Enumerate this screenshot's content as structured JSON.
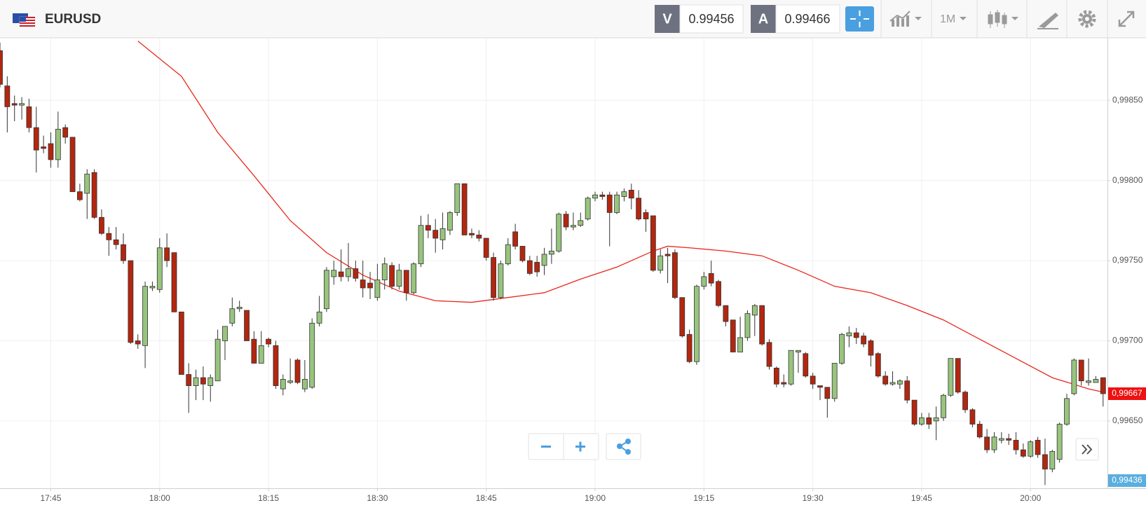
{
  "chart_data": {
    "type": "candlestick",
    "title": "EURUSD",
    "bid_tag": "V",
    "bid": 0.99456,
    "ask_tag": "A",
    "ask": 0.99466,
    "timeframe": "1M",
    "up_color": "#98c47e",
    "down_color": "#b3260f",
    "wick_color": "#333333",
    "ohlc": [
      [
        0.99881,
        0.99886,
        0.99858,
        0.9986
      ],
      [
        0.99859,
        0.99865,
        0.9983,
        0.99846
      ],
      [
        0.99848,
        0.99853,
        0.99837,
        0.99847
      ],
      [
        0.99847,
        0.99852,
        0.99838,
        0.99848
      ],
      [
        0.99846,
        0.99851,
        0.9983,
        0.99833
      ],
      [
        0.99833,
        0.99846,
        0.99805,
        0.99819
      ],
      [
        0.99821,
        0.99828,
        0.99817,
        0.9982
      ],
      [
        0.99823,
        0.9983,
        0.99808,
        0.99813
      ],
      [
        0.99813,
        0.99843,
        0.99808,
        0.99832
      ],
      [
        0.99833,
        0.99835,
        0.99823,
        0.99827
      ],
      [
        0.99827,
        0.99827,
        0.99793,
        0.99793
      ],
      [
        0.99793,
        0.99798,
        0.99787,
        0.99788
      ],
      [
        0.99792,
        0.99807,
        0.99776,
        0.99804
      ],
      [
        0.99805,
        0.99807,
        0.99776,
        0.99777
      ],
      [
        0.99777,
        0.99782,
        0.99766,
        0.99767
      ],
      [
        0.99767,
        0.99771,
        0.99753,
        0.99763
      ],
      [
        0.99763,
        0.99771,
        0.99757,
        0.9976
      ],
      [
        0.9976,
        0.99767,
        0.99748,
        0.9975
      ],
      [
        0.9975,
        0.9975,
        0.99698,
        0.99699
      ],
      [
        0.997,
        0.99704,
        0.99695,
        0.99698
      ],
      [
        0.99697,
        0.99737,
        0.99683,
        0.99734
      ],
      [
        0.99733,
        0.99737,
        0.99731,
        0.99734
      ],
      [
        0.99732,
        0.99764,
        0.9973,
        0.99758
      ],
      [
        0.99758,
        0.99767,
        0.99746,
        0.9975
      ],
      [
        0.99755,
        0.99755,
        0.99718,
        0.99718
      ],
      [
        0.99718,
        0.99718,
        0.99679,
        0.99679
      ],
      [
        0.99679,
        0.99686,
        0.99655,
        0.99672
      ],
      [
        0.99672,
        0.99682,
        0.99663,
        0.99677
      ],
      [
        0.99677,
        0.99684,
        0.99663,
        0.99673
      ],
      [
        0.99672,
        0.99679,
        0.99662,
        0.99677
      ],
      [
        0.99675,
        0.99707,
        0.99675,
        0.99701
      ],
      [
        0.997,
        0.99709,
        0.99688,
        0.99709
      ],
      [
        0.99711,
        0.99727,
        0.99709,
        0.9972
      ],
      [
        0.9972,
        0.99725,
        0.99718,
        0.99721
      ],
      [
        0.99719,
        0.99719,
        0.997,
        0.997
      ],
      [
        0.99701,
        0.99706,
        0.99686,
        0.99686
      ],
      [
        0.99686,
        0.99706,
        0.99686,
        0.99697
      ],
      [
        0.99701,
        0.99702,
        0.99696,
        0.99698
      ],
      [
        0.99697,
        0.997,
        0.9967,
        0.99672
      ],
      [
        0.9967,
        0.99679,
        0.99666,
        0.99676
      ],
      [
        0.99674,
        0.99689,
        0.99673,
        0.99675
      ],
      [
        0.99688,
        0.99689,
        0.99673,
        0.99674
      ],
      [
        0.9967,
        0.99688,
        0.99668,
        0.99676
      ],
      [
        0.99671,
        0.99714,
        0.9967,
        0.99711
      ],
      [
        0.99711,
        0.99728,
        0.99709,
        0.99718
      ],
      [
        0.9972,
        0.99746,
        0.99718,
        0.99744
      ],
      [
        0.9974,
        0.9975,
        0.99735,
        0.99744
      ],
      [
        0.99743,
        0.99757,
        0.99737,
        0.9974
      ],
      [
        0.9974,
        0.99761,
        0.99737,
        0.99745
      ],
      [
        0.99745,
        0.9975,
        0.99737,
        0.99739
      ],
      [
        0.99738,
        0.9975,
        0.99727,
        0.99733
      ],
      [
        0.99736,
        0.99743,
        0.99726,
        0.99733
      ],
      [
        0.99727,
        0.99748,
        0.99725,
        0.99738
      ],
      [
        0.99738,
        0.99752,
        0.99732,
        0.99748
      ],
      [
        0.99747,
        0.99749,
        0.99732,
        0.99734
      ],
      [
        0.99734,
        0.99748,
        0.99732,
        0.99744
      ],
      [
        0.99744,
        0.99744,
        0.99725,
        0.9973
      ],
      [
        0.9973,
        0.99749,
        0.99729,
        0.99748
      ],
      [
        0.99748,
        0.99778,
        0.99746,
        0.99772
      ],
      [
        0.99772,
        0.99779,
        0.99764,
        0.99769
      ],
      [
        0.99769,
        0.99776,
        0.99755,
        0.99764
      ],
      [
        0.99763,
        0.9978,
        0.99757,
        0.9977
      ],
      [
        0.99769,
        0.99781,
        0.99766,
        0.9978
      ],
      [
        0.9978,
        0.99798,
        0.99778,
        0.99798
      ],
      [
        0.99798,
        0.99798,
        0.99766,
        0.99766
      ],
      [
        0.99767,
        0.9977,
        0.99764,
        0.99766
      ],
      [
        0.99766,
        0.99769,
        0.99762,
        0.99764
      ],
      [
        0.99764,
        0.99764,
        0.9975,
        0.99752
      ],
      [
        0.99752,
        0.99755,
        0.99725,
        0.99727
      ],
      [
        0.99727,
        0.9975,
        0.99726,
        0.99748
      ],
      [
        0.99748,
        0.99764,
        0.99747,
        0.9976
      ],
      [
        0.99768,
        0.99773,
        0.99757,
        0.99759
      ],
      [
        0.99759,
        0.99759,
        0.99749,
        0.9975
      ],
      [
        0.9975,
        0.99753,
        0.99741,
        0.99742
      ],
      [
        0.99749,
        0.99753,
        0.9974,
        0.99743
      ],
      [
        0.99747,
        0.99758,
        0.99741,
        0.99754
      ],
      [
        0.99754,
        0.9977,
        0.99748,
        0.99756
      ],
      [
        0.99756,
        0.9978,
        0.99755,
        0.99779
      ],
      [
        0.99779,
        0.99781,
        0.99769,
        0.99771
      ],
      [
        0.99771,
        0.9978,
        0.99769,
        0.99772
      ],
      [
        0.99772,
        0.9978,
        0.99771,
        0.99775
      ],
      [
        0.99776,
        0.9979,
        0.99775,
        0.99789
      ],
      [
        0.99789,
        0.99793,
        0.99787,
        0.99791
      ],
      [
        0.99791,
        0.99793,
        0.99788,
        0.9979
      ],
      [
        0.99791,
        0.99793,
        0.99759,
        0.9978
      ],
      [
        0.9978,
        0.99793,
        0.99779,
        0.99791
      ],
      [
        0.9979,
        0.99795,
        0.99787,
        0.99793
      ],
      [
        0.99794,
        0.99798,
        0.99782,
        0.99789
      ],
      [
        0.99789,
        0.99794,
        0.99775,
        0.99776
      ],
      [
        0.9978,
        0.99782,
        0.99768,
        0.99776
      ],
      [
        0.99778,
        0.99778,
        0.99743,
        0.99744
      ],
      [
        0.99744,
        0.99757,
        0.99742,
        0.99753
      ],
      [
        0.99754,
        0.99758,
        0.99736,
        0.99753
      ],
      [
        0.99755,
        0.99757,
        0.99726,
        0.99727
      ],
      [
        0.99727,
        0.99727,
        0.99702,
        0.99703
      ],
      [
        0.99704,
        0.99707,
        0.99686,
        0.99687
      ],
      [
        0.99687,
        0.99735,
        0.99685,
        0.99734
      ],
      [
        0.99734,
        0.99743,
        0.99732,
        0.9974
      ],
      [
        0.99742,
        0.9975,
        0.99734,
        0.99736
      ],
      [
        0.99737,
        0.99738,
        0.99721,
        0.99722
      ],
      [
        0.99722,
        0.99722,
        0.99709,
        0.99712
      ],
      [
        0.99713,
        0.99713,
        0.99693,
        0.99693
      ],
      [
        0.99693,
        0.99715,
        0.99693,
        0.99702
      ],
      [
        0.99702,
        0.99719,
        0.997,
        0.99717
      ],
      [
        0.99716,
        0.99723,
        0.99703,
        0.99722
      ],
      [
        0.99722,
        0.99722,
        0.99697,
        0.99698
      ],
      [
        0.99699,
        0.99701,
        0.99682,
        0.99684
      ],
      [
        0.99683,
        0.99684,
        0.99671,
        0.99673
      ],
      [
        0.99674,
        0.99679,
        0.99671,
        0.99673
      ],
      [
        0.99673,
        0.99694,
        0.99672,
        0.99694
      ],
      [
        0.99693,
        0.99694,
        0.9968,
        0.99694
      ],
      [
        0.99692,
        0.99693,
        0.99677,
        0.99678
      ],
      [
        0.99678,
        0.9968,
        0.9967,
        0.99673
      ],
      [
        0.99672,
        0.99672,
        0.99663,
        0.99671
      ],
      [
        0.99671,
        0.99671,
        0.99652,
        0.99664
      ],
      [
        0.99664,
        0.99686,
        0.99662,
        0.99686
      ],
      [
        0.99686,
        0.99705,
        0.99685,
        0.99704
      ],
      [
        0.99703,
        0.99709,
        0.99696,
        0.99705
      ],
      [
        0.99705,
        0.99708,
        0.99698,
        0.99702
      ],
      [
        0.99703,
        0.99705,
        0.99696,
        0.99698
      ],
      [
        0.997,
        0.99701,
        0.99684,
        0.99691
      ],
      [
        0.99692,
        0.99693,
        0.99677,
        0.99678
      ],
      [
        0.99678,
        0.99681,
        0.99672,
        0.99673
      ],
      [
        0.99673,
        0.99681,
        0.99672,
        0.99674
      ],
      [
        0.99673,
        0.99676,
        0.9967,
        0.99675
      ],
      [
        0.99675,
        0.99678,
        0.99661,
        0.99663
      ],
      [
        0.99663,
        0.99663,
        0.99647,
        0.99648
      ],
      [
        0.99648,
        0.99655,
        0.99647,
        0.99652
      ],
      [
        0.99652,
        0.99655,
        0.99645,
        0.99648
      ],
      [
        0.9965,
        0.99659,
        0.99638,
        0.99652
      ],
      [
        0.99652,
        0.99667,
        0.9965,
        0.99666
      ],
      [
        0.99666,
        0.99689,
        0.99665,
        0.99689
      ],
      [
        0.99689,
        0.99689,
        0.99667,
        0.99668
      ],
      [
        0.99668,
        0.99669,
        0.99655,
        0.99657
      ],
      [
        0.99657,
        0.99658,
        0.99646,
        0.99648
      ],
      [
        0.99648,
        0.9965,
        0.99639,
        0.9964
      ],
      [
        0.9964,
        0.99645,
        0.9963,
        0.99632
      ],
      [
        0.99632,
        0.99643,
        0.9963,
        0.9964
      ],
      [
        0.99638,
        0.99643,
        0.99636,
        0.99639
      ],
      [
        0.99639,
        0.99642,
        0.99635,
        0.99638
      ],
      [
        0.99638,
        0.99643,
        0.99629,
        0.99632
      ],
      [
        0.99632,
        0.99636,
        0.99627,
        0.99628
      ],
      [
        0.99628,
        0.99638,
        0.99627,
        0.99637
      ],
      [
        0.99638,
        0.9964,
        0.99627,
        0.99629
      ],
      [
        0.99629,
        0.99639,
        0.9961,
        0.9962
      ],
      [
        0.9962,
        0.99632,
        0.99618,
        0.99631
      ],
      [
        0.99626,
        0.99649,
        0.99624,
        0.99648
      ],
      [
        0.99648,
        0.99667,
        0.99647,
        0.99664
      ],
      [
        0.99667,
        0.99689,
        0.99666,
        0.99688
      ],
      [
        0.99688,
        0.99688,
        0.99672,
        0.99675
      ],
      [
        0.99674,
        0.99689,
        0.99672,
        0.99675
      ],
      [
        0.99674,
        0.99678,
        0.99674,
        0.99676
      ],
      [
        0.99677,
        0.99677,
        0.99659,
        0.99667
      ]
    ],
    "ma": {
      "color": "#e8271c",
      "x": [
        19,
        25,
        30,
        35,
        40,
        45,
        50,
        55,
        60,
        65,
        70,
        75,
        80,
        85,
        90,
        92,
        95,
        100,
        105,
        110,
        115,
        120,
        125,
        130,
        135,
        140,
        145,
        150,
        152
      ],
      "values": [
        0.99887,
        0.99865,
        0.9983,
        0.99803,
        0.99775,
        0.99755,
        0.99741,
        0.99731,
        0.99725,
        0.99724,
        0.99727,
        0.9973,
        0.997385,
        0.99746,
        0.99756,
        0.99759,
        0.99758,
        0.99756,
        0.99753,
        0.99744,
        0.99734,
        0.9973,
        0.99722,
        0.99713,
        0.99701,
        0.99689,
        0.99677,
        0.9967,
        0.99668
      ]
    },
    "xlim": [
      0,
      152.6
    ],
    "xticks": [
      {
        "value": 7,
        "label": "17:45"
      },
      {
        "value": 22,
        "label": "18:00"
      },
      {
        "value": 37,
        "label": "18:15"
      },
      {
        "value": 52,
        "label": "18:30"
      },
      {
        "value": 67,
        "label": "18:45"
      },
      {
        "value": 82,
        "label": "19:00"
      },
      {
        "value": 97,
        "label": "19:15"
      },
      {
        "value": 112,
        "label": "19:30"
      },
      {
        "value": 127,
        "label": "19:45"
      },
      {
        "value": 142,
        "label": "20:00"
      }
    ],
    "ylim": [
      0.99608,
      0.99889
    ],
    "yticks": [
      {
        "value": 0.9985,
        "label": "0,99850"
      },
      {
        "value": 0.998,
        "label": "0,99800"
      },
      {
        "value": 0.9975,
        "label": "0,99750"
      },
      {
        "value": 0.997,
        "label": "0,99700"
      },
      {
        "value": 0.9965,
        "label": "0,99650"
      }
    ],
    "grid": true,
    "last_price": {
      "value": 0.99667,
      "label": "0,99667"
    },
    "last_price_color": "#ee1111",
    "low_marker": "0,99436",
    "low_marker_color": "#5aaee0"
  }
}
